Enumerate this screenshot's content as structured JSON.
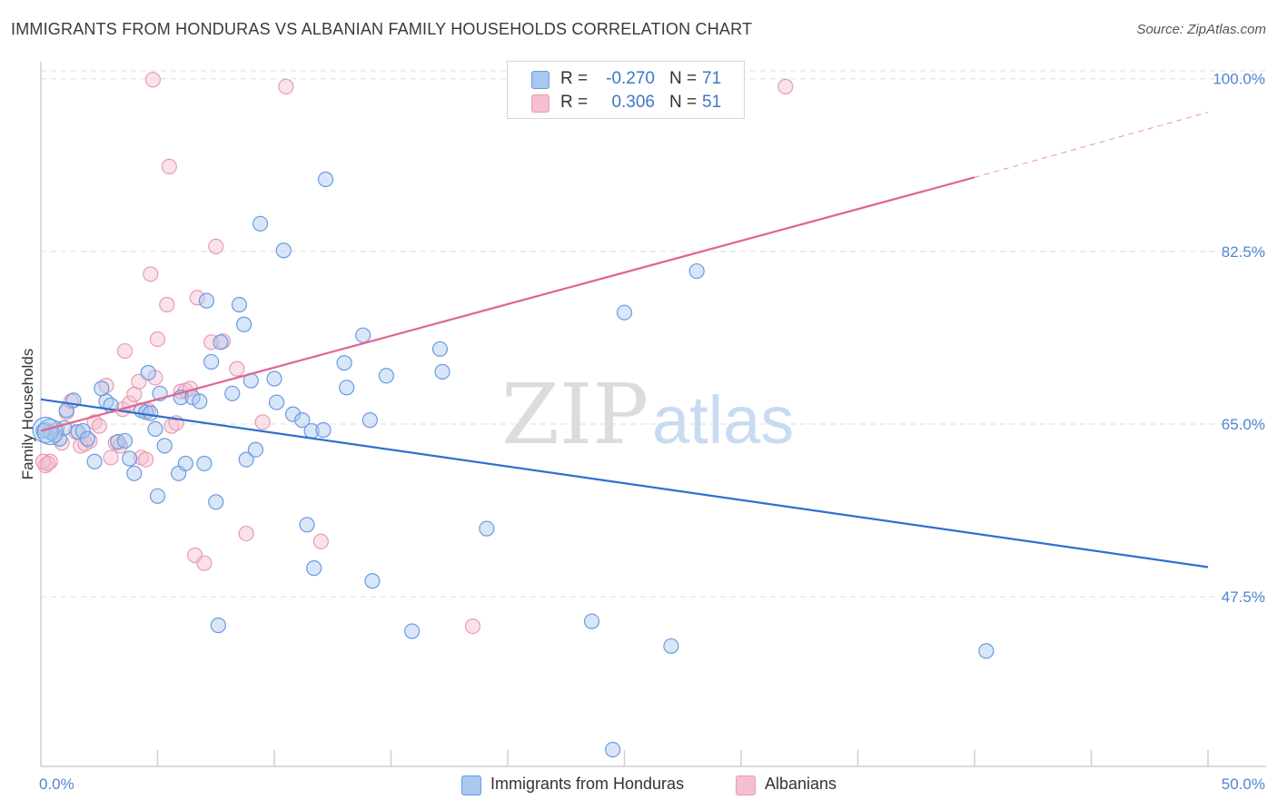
{
  "header": {
    "title": "IMMIGRANTS FROM HONDURAS VS ALBANIAN FAMILY HOUSEHOLDS CORRELATION CHART",
    "source": "Source: ZipAtlas.com"
  },
  "watermark": {
    "zip": "ZIP",
    "atlas": "atlas"
  },
  "legend_top": [
    {
      "r_label": "R =",
      "r_value": "-0.270",
      "n_label": "N =",
      "n_value": "71"
    },
    {
      "r_label": "R =",
      "r_value": "0.306",
      "n_label": "N =",
      "n_value": "51"
    }
  ],
  "legend_bottom": [
    {
      "label": "Immigrants from Honduras"
    },
    {
      "label": "Albanians"
    }
  ],
  "colors": {
    "blue_fill": "#a9c8ef",
    "blue_stroke": "#6a9be0",
    "blue_line": "#2f6fcf",
    "pink_fill": "#f6bfd1",
    "pink_stroke": "#e99ab5",
    "pink_line": "#e0668f",
    "grid": "#dddddd",
    "tick_text": "#4f86cf"
  },
  "chart_data": {
    "type": "scatter",
    "title": "IMMIGRANTS FROM HONDURAS VS ALBANIAN FAMILY HOUSEHOLDS CORRELATION CHART",
    "xlabel": "",
    "ylabel": "Family Households",
    "xlim": [
      0,
      50
    ],
    "ylim": [
      30.3,
      100.8
    ],
    "x_tick_labels": [
      "0.0%",
      "50.0%"
    ],
    "y_ticks": [
      47.5,
      65.0,
      82.5,
      100.0
    ],
    "y_tick_labels": [
      "47.5%",
      "65.0%",
      "82.5%",
      "100.0%"
    ],
    "grid": true,
    "series": [
      {
        "name": "Immigrants from Honduras",
        "color": "#6a9be0",
        "r": -0.27,
        "n": 71,
        "trendline": {
          "x": [
            0,
            50
          ],
          "y": [
            67.5,
            50.5
          ]
        },
        "points": [
          [
            0.2,
            64.4
          ],
          [
            0.4,
            64.2
          ],
          [
            0.6,
            63.9
          ],
          [
            0.8,
            63.5
          ],
          [
            1.0,
            64.6
          ],
          [
            1.1,
            66.4
          ],
          [
            1.4,
            67.4
          ],
          [
            1.6,
            64.2
          ],
          [
            1.8,
            64.3
          ],
          [
            2.0,
            63.5
          ],
          [
            2.3,
            61.2
          ],
          [
            2.6,
            68.6
          ],
          [
            2.8,
            67.3
          ],
          [
            3.0,
            66.9
          ],
          [
            3.3,
            63.2
          ],
          [
            3.6,
            63.3
          ],
          [
            3.8,
            61.5
          ],
          [
            4.0,
            60.0
          ],
          [
            4.3,
            66.4
          ],
          [
            4.5,
            66.2
          ],
          [
            4.6,
            70.2
          ],
          [
            4.7,
            66.1
          ],
          [
            4.9,
            64.5
          ],
          [
            5.0,
            57.7
          ],
          [
            5.1,
            68.1
          ],
          [
            5.3,
            62.8
          ],
          [
            5.9,
            60.0
          ],
          [
            6.0,
            67.7
          ],
          [
            6.2,
            61.0
          ],
          [
            6.5,
            67.7
          ],
          [
            6.8,
            67.3
          ],
          [
            7.0,
            61.0
          ],
          [
            7.1,
            77.5
          ],
          [
            7.3,
            71.3
          ],
          [
            7.5,
            57.1
          ],
          [
            7.6,
            44.6
          ],
          [
            7.7,
            73.3
          ],
          [
            8.2,
            68.1
          ],
          [
            8.5,
            77.1
          ],
          [
            8.7,
            75.1
          ],
          [
            8.8,
            61.4
          ],
          [
            9.0,
            69.4
          ],
          [
            9.2,
            62.4
          ],
          [
            9.4,
            85.3
          ],
          [
            10.0,
            69.6
          ],
          [
            10.1,
            67.2
          ],
          [
            10.4,
            82.6
          ],
          [
            10.8,
            66.0
          ],
          [
            11.2,
            65.4
          ],
          [
            11.4,
            54.8
          ],
          [
            11.6,
            64.3
          ],
          [
            11.7,
            50.4
          ],
          [
            12.1,
            64.4
          ],
          [
            12.2,
            89.8
          ],
          [
            13.0,
            71.2
          ],
          [
            13.1,
            68.7
          ],
          [
            13.8,
            74.0
          ],
          [
            14.1,
            65.4
          ],
          [
            14.2,
            49.1
          ],
          [
            14.8,
            69.9
          ],
          [
            15.9,
            44.0
          ],
          [
            17.1,
            72.6
          ],
          [
            17.2,
            70.3
          ],
          [
            19.1,
            54.4
          ],
          [
            23.6,
            45.0
          ],
          [
            24.5,
            32.0
          ],
          [
            25.0,
            76.3
          ],
          [
            27.0,
            42.5
          ],
          [
            28.1,
            80.5
          ],
          [
            40.5,
            42.0
          ],
          [
            0.1,
            64.3
          ]
        ],
        "sizes_emphasis": [
          [
            0.2,
            64.4
          ],
          [
            0.4,
            64.2
          ]
        ]
      },
      {
        "name": "Albanians",
        "color": "#e99ab5",
        "r": 0.306,
        "n": 51,
        "trendline": {
          "x": [
            0,
            40.0
          ],
          "y": [
            64.3,
            90.0
          ]
        },
        "trendline_dashed_extension": {
          "x": [
            40.0,
            50
          ],
          "y": [
            90.0,
            96.6
          ]
        },
        "points": [
          [
            0.2,
            60.8
          ],
          [
            0.4,
            61.2
          ],
          [
            0.5,
            64.0
          ],
          [
            0.7,
            64.5
          ],
          [
            0.9,
            63.1
          ],
          [
            1.1,
            66.2
          ],
          [
            1.3,
            67.3
          ],
          [
            1.5,
            64.2
          ],
          [
            1.7,
            62.8
          ],
          [
            1.9,
            63.0
          ],
          [
            2.1,
            63.3
          ],
          [
            2.3,
            65.2
          ],
          [
            2.5,
            64.8
          ],
          [
            2.8,
            68.9
          ],
          [
            3.0,
            61.6
          ],
          [
            3.2,
            63.1
          ],
          [
            3.4,
            62.8
          ],
          [
            3.5,
            66.5
          ],
          [
            3.6,
            72.4
          ],
          [
            3.8,
            67.1
          ],
          [
            4.0,
            68.0
          ],
          [
            4.2,
            69.3
          ],
          [
            4.3,
            61.6
          ],
          [
            4.5,
            61.4
          ],
          [
            4.6,
            66.4
          ],
          [
            4.7,
            80.2
          ],
          [
            4.9,
            69.7
          ],
          [
            5.0,
            73.6
          ],
          [
            5.4,
            77.1
          ],
          [
            5.5,
            91.1
          ],
          [
            5.6,
            64.8
          ],
          [
            5.8,
            65.1
          ],
          [
            6.0,
            68.3
          ],
          [
            6.2,
            68.4
          ],
          [
            6.4,
            68.6
          ],
          [
            6.6,
            51.7
          ],
          [
            6.7,
            77.8
          ],
          [
            7.0,
            50.9
          ],
          [
            7.3,
            73.3
          ],
          [
            7.5,
            83.0
          ],
          [
            7.8,
            73.4
          ],
          [
            8.4,
            70.6
          ],
          [
            8.8,
            53.9
          ],
          [
            9.5,
            65.2
          ],
          [
            10.5,
            99.2
          ],
          [
            12.0,
            53.1
          ],
          [
            18.5,
            44.5
          ],
          [
            31.9,
            99.2
          ],
          [
            4.8,
            99.9
          ],
          [
            0.1,
            61.2
          ],
          [
            0.3,
            61.0
          ]
        ]
      }
    ]
  }
}
